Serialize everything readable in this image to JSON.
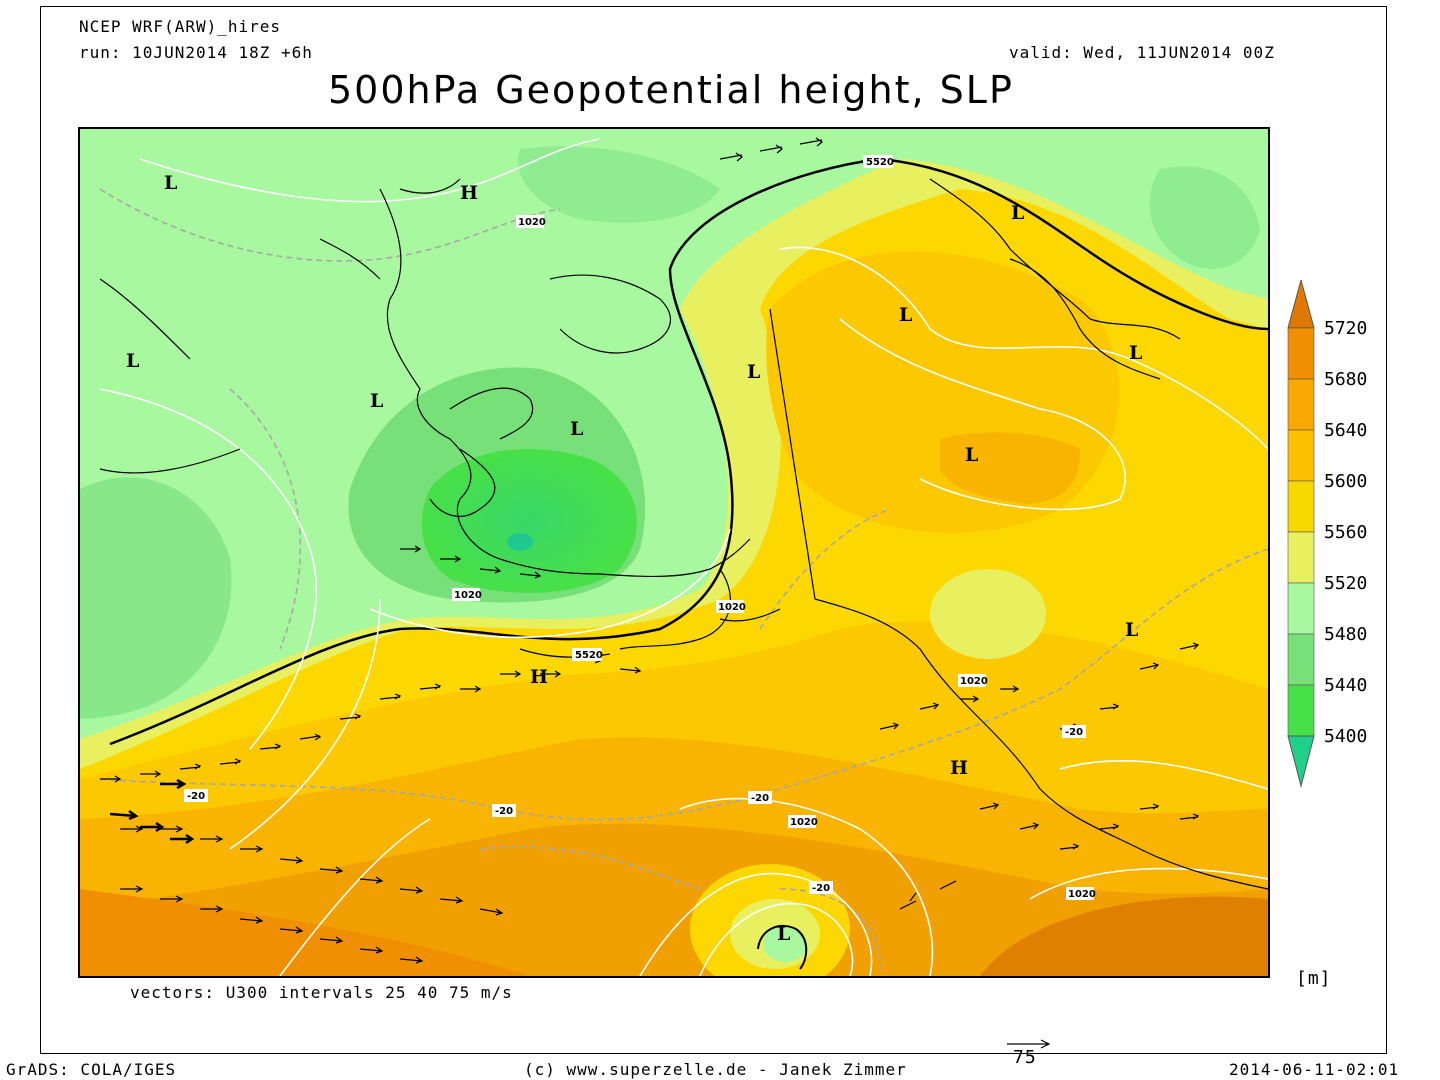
{
  "header": {
    "model": "NCEP WRF(ARW)_hires",
    "run": "run: 10JUN2014 18Z +6h",
    "valid": "valid: Wed, 11JUN2014 00Z",
    "title": "500hPa Geopotential height, SLP"
  },
  "map": {
    "pressure_centers": [
      {
        "type": "L",
        "label": "L"
      },
      {
        "type": "H",
        "label": "H"
      },
      {
        "type": "L",
        "label": "L"
      },
      {
        "type": "L",
        "label": "L"
      },
      {
        "type": "L",
        "label": "L"
      },
      {
        "type": "L",
        "label": "L"
      },
      {
        "type": "L",
        "label": "L"
      },
      {
        "type": "L",
        "label": "L"
      },
      {
        "type": "L",
        "label": "L"
      },
      {
        "type": "L",
        "label": "L"
      },
      {
        "type": "L",
        "label": "L"
      },
      {
        "type": "H",
        "label": "H"
      },
      {
        "type": "H",
        "label": "H"
      },
      {
        "type": "L",
        "label": "L"
      }
    ],
    "contour_labels": [
      "5520",
      "5520",
      "1020",
      "1020",
      "1020",
      "1020",
      "1020",
      "1020",
      "-20",
      "-20",
      "-20",
      "-20",
      "-20"
    ],
    "vectors_note": "vectors: U300 intervals 25 40 75 m/s",
    "reference_vector_label": "75"
  },
  "colorbar": {
    "unit": "[m]",
    "levels": [
      "5720",
      "5680",
      "5640",
      "5600",
      "5560",
      "5520",
      "5480",
      "5440",
      "5400"
    ],
    "colors": [
      "#e07800",
      "#f09000",
      "#f8a800",
      "#fcc000",
      "#f8d800",
      "#e8f060",
      "#a8f8a0",
      "#78e078",
      "#48e048",
      "#20d088"
    ]
  },
  "footer": {
    "left": "GrADS: COLA/IGES",
    "center": "(c) www.superzelle.de - Janek Zimmer",
    "right": "2014-06-11-02:01"
  }
}
